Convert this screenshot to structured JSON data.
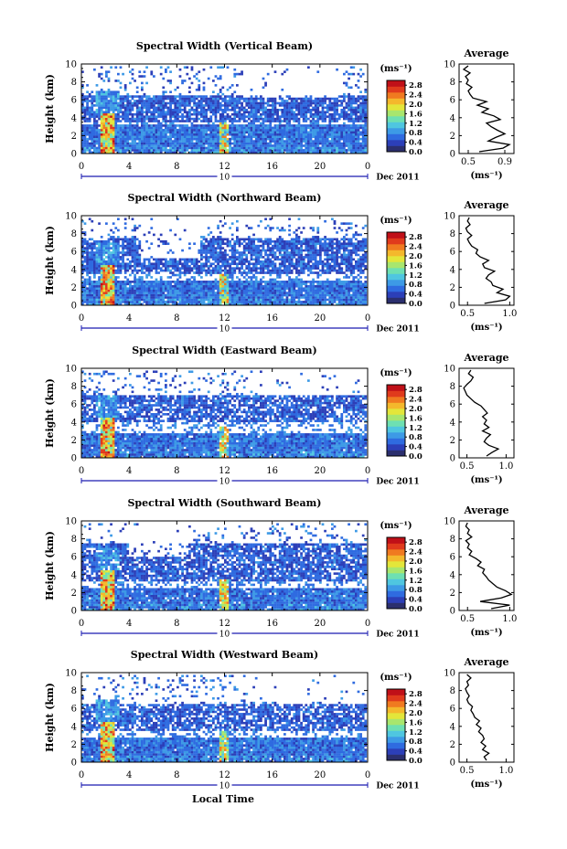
{
  "figure": {
    "xlabel": "Local Time",
    "ylabel": "Height (km)",
    "date_label": "Dec 2011",
    "day_label": "10",
    "colorbar_unit": "(ms⁻¹)",
    "profile_title": "Average",
    "profile_xlabel": "(ms⁻¹)"
  },
  "colors": {
    "colormap": [
      "#2b2f6e",
      "#2c3fb8",
      "#2f6be0",
      "#3d9ae6",
      "#4fc6e0",
      "#6ee0b2",
      "#a8e66e",
      "#e3e63a",
      "#f4b82c",
      "#f07a20",
      "#e03a1c",
      "#c01018"
    ]
  },
  "chart_data": [
    {
      "type": "heatmap",
      "title": "Spectral Width (Vertical Beam)",
      "x_ticks": [
        "0",
        "4",
        "8",
        "12",
        "16",
        "20",
        "0"
      ],
      "y_ticks": [
        "0",
        "2",
        "4",
        "6",
        "8",
        "10"
      ],
      "xlim": [
        0,
        24
      ],
      "ylim": [
        0,
        10
      ],
      "colorbar_ticks": [
        "2.8",
        "2.4",
        "2.0",
        "1.6",
        "1.2",
        "0.8",
        "0.4",
        "0.0"
      ],
      "colorbar_range": [
        0,
        3.0
      ],
      "features": {
        "lower_top_km": 3.2,
        "upper_bottom_km": 3.5,
        "upper_top_km": 6.5,
        "sparse_top_km": 9.8,
        "clear_from_hr": 13.5,
        "clear_to_hr": 22,
        "clear_bottom_km": 6.3,
        "fill": 0.85,
        "seed": 11
      },
      "profile": {
        "x_ticks": [
          "0.5",
          "0.9"
        ],
        "xlim": [
          0.4,
          1.0
        ],
        "heights": [
          0.2,
          0.6,
          1.0,
          1.4,
          1.8,
          2.2,
          2.6,
          3.0,
          3.4,
          3.8,
          4.2,
          4.6,
          5.0,
          5.4,
          5.8,
          6.2,
          6.6,
          7.0,
          7.4,
          7.8,
          8.2,
          8.6,
          9.0,
          9.4,
          9.8
        ],
        "values": [
          0.62,
          0.88,
          0.95,
          0.72,
          0.8,
          0.9,
          0.82,
          0.75,
          0.7,
          0.85,
          0.78,
          0.65,
          0.72,
          0.6,
          0.7,
          0.55,
          0.52,
          0.5,
          0.54,
          0.48,
          0.5,
          0.47,
          0.52,
          0.45,
          0.5
        ]
      }
    },
    {
      "type": "heatmap",
      "title": "Spectral Width (Northward Beam)",
      "x_ticks": [
        "0",
        "4",
        "8",
        "12",
        "16",
        "20",
        "0"
      ],
      "y_ticks": [
        "0",
        "2",
        "4",
        "6",
        "8",
        "10"
      ],
      "xlim": [
        0,
        24
      ],
      "ylim": [
        0,
        10
      ],
      "colorbar_ticks": [
        "2.8",
        "2.4",
        "2.0",
        "1.6",
        "1.2",
        "0.8",
        "0.4",
        "0.0"
      ],
      "colorbar_range": [
        0,
        3.0
      ],
      "features": {
        "lower_top_km": 2.8,
        "upper_bottom_km": 3.4,
        "upper_top_km": 7.6,
        "sparse_top_km": 9.8,
        "clear_from_hr": 5,
        "clear_to_hr": 10,
        "clear_bottom_km": 5.2,
        "fill": 0.8,
        "seed": 23
      },
      "profile": {
        "x_ticks": [
          "0.5",
          "1.0"
        ],
        "xlim": [
          0.4,
          1.05
        ],
        "heights": [
          0.2,
          0.6,
          1.0,
          1.4,
          1.8,
          2.2,
          2.6,
          3.0,
          3.4,
          3.8,
          4.2,
          4.6,
          5.0,
          5.4,
          5.8,
          6.2,
          6.6,
          7.0,
          7.4,
          7.8,
          8.2,
          8.6,
          9.0,
          9.4,
          9.8
        ],
        "values": [
          0.7,
          0.95,
          1.0,
          0.85,
          0.92,
          0.8,
          0.78,
          0.72,
          0.75,
          0.82,
          0.7,
          0.68,
          0.75,
          0.65,
          0.6,
          0.62,
          0.55,
          0.52,
          0.5,
          0.55,
          0.5,
          0.48,
          0.53,
          0.5,
          0.52
        ]
      }
    },
    {
      "type": "heatmap",
      "title": "Spectral Width (Eastward Beam)",
      "x_ticks": [
        "0",
        "4",
        "8",
        "12",
        "16",
        "20",
        "0"
      ],
      "y_ticks": [
        "0",
        "2",
        "4",
        "6",
        "8",
        "10"
      ],
      "xlim": [
        0,
        24
      ],
      "ylim": [
        0,
        10
      ],
      "colorbar_ticks": [
        "2.8",
        "2.4",
        "2.0",
        "1.6",
        "1.2",
        "0.8",
        "0.4",
        "0.0"
      ],
      "colorbar_range": [
        0,
        3.0
      ],
      "features": {
        "lower_top_km": 2.8,
        "upper_bottom_km": 4.0,
        "upper_top_km": 7.0,
        "sparse_top_km": 9.8,
        "clear_from_hr": 14,
        "clear_to_hr": 24,
        "clear_bottom_km": 7.0,
        "fill": 0.75,
        "seed": 37
      },
      "profile": {
        "x_ticks": [
          "0.5",
          "1.0"
        ],
        "xlim": [
          0.4,
          1.1
        ],
        "heights": [
          0.2,
          0.6,
          1.0,
          1.4,
          1.8,
          2.2,
          2.6,
          3.0,
          3.4,
          3.8,
          4.2,
          4.6,
          5.0,
          5.4,
          5.8,
          6.2,
          6.6,
          7.0,
          7.4,
          7.8,
          8.2,
          8.6,
          9.0,
          9.4,
          9.8
        ],
        "values": [
          0.75,
          0.82,
          0.9,
          0.78,
          0.72,
          0.75,
          0.8,
          0.7,
          0.78,
          0.72,
          0.75,
          0.7,
          0.76,
          0.72,
          0.68,
          0.6,
          0.55,
          0.5,
          0.48,
          0.46,
          0.5,
          0.55,
          0.58,
          0.52,
          0.55
        ]
      }
    },
    {
      "type": "heatmap",
      "title": "Spectral Width (Southward Beam)",
      "x_ticks": [
        "0",
        "4",
        "8",
        "12",
        "16",
        "20",
        "0"
      ],
      "y_ticks": [
        "0",
        "2",
        "4",
        "6",
        "8",
        "10"
      ],
      "xlim": [
        0,
        24
      ],
      "ylim": [
        0,
        10
      ],
      "colorbar_ticks": [
        "2.8",
        "2.4",
        "2.0",
        "1.6",
        "1.2",
        "0.8",
        "0.4",
        "0.0"
      ],
      "colorbar_range": [
        0,
        3.0
      ],
      "features": {
        "lower_top_km": 2.6,
        "upper_bottom_km": 3.2,
        "upper_top_km": 7.6,
        "sparse_top_km": 9.8,
        "clear_from_hr": 4,
        "clear_to_hr": 9,
        "clear_bottom_km": 6.0,
        "fill": 0.8,
        "seed": 53
      },
      "profile": {
        "x_ticks": [
          "0.5",
          "1.0"
        ],
        "xlim": [
          0.4,
          1.05
        ],
        "heights": [
          0.2,
          0.6,
          1.0,
          1.4,
          1.8,
          2.2,
          2.6,
          3.0,
          3.4,
          3.8,
          4.2,
          4.6,
          5.0,
          5.4,
          5.8,
          6.2,
          6.6,
          7.0,
          7.4,
          7.8,
          8.2,
          8.6,
          9.0,
          9.4,
          9.8
        ],
        "values": [
          0.78,
          1.0,
          0.65,
          0.9,
          1.02,
          0.95,
          0.85,
          0.8,
          0.75,
          0.72,
          0.68,
          0.7,
          0.62,
          0.66,
          0.6,
          0.52,
          0.55,
          0.5,
          0.52,
          0.48,
          0.55,
          0.5,
          0.52,
          0.48,
          0.5
        ]
      }
    },
    {
      "type": "heatmap",
      "title": "Spectral Width (Westward Beam)",
      "x_ticks": [
        "0",
        "4",
        "8",
        "12",
        "16",
        "20",
        "0"
      ],
      "y_ticks": [
        "0",
        "2",
        "4",
        "6",
        "8",
        "10"
      ],
      "xlim": [
        0,
        24
      ],
      "ylim": [
        0,
        10
      ],
      "colorbar_ticks": [
        "2.8",
        "2.4",
        "2.0",
        "1.6",
        "1.2",
        "0.8",
        "0.4",
        "0.0"
      ],
      "colorbar_range": [
        0,
        3.0
      ],
      "features": {
        "lower_top_km": 2.8,
        "upper_bottom_km": 3.6,
        "upper_top_km": 6.6,
        "sparse_top_km": 9.8,
        "clear_from_hr": 14,
        "clear_to_hr": 24,
        "clear_bottom_km": 6.8,
        "fill": 0.75,
        "seed": 71
      },
      "profile": {
        "x_ticks": [
          "0.5",
          "1.0"
        ],
        "xlim": [
          0.4,
          1.1
        ],
        "heights": [
          0.2,
          0.6,
          1.0,
          1.4,
          1.8,
          2.2,
          2.6,
          3.0,
          3.4,
          3.8,
          4.2,
          4.6,
          5.0,
          5.4,
          5.8,
          6.2,
          6.6,
          7.0,
          7.4,
          7.8,
          8.2,
          8.6,
          9.0,
          9.4,
          9.8
        ],
        "values": [
          0.75,
          0.72,
          0.78,
          0.7,
          0.74,
          0.68,
          0.72,
          0.7,
          0.65,
          0.68,
          0.62,
          0.66,
          0.6,
          0.58,
          0.55,
          0.57,
          0.52,
          0.5,
          0.53,
          0.5,
          0.48,
          0.52,
          0.5,
          0.55,
          0.5
        ]
      }
    }
  ]
}
